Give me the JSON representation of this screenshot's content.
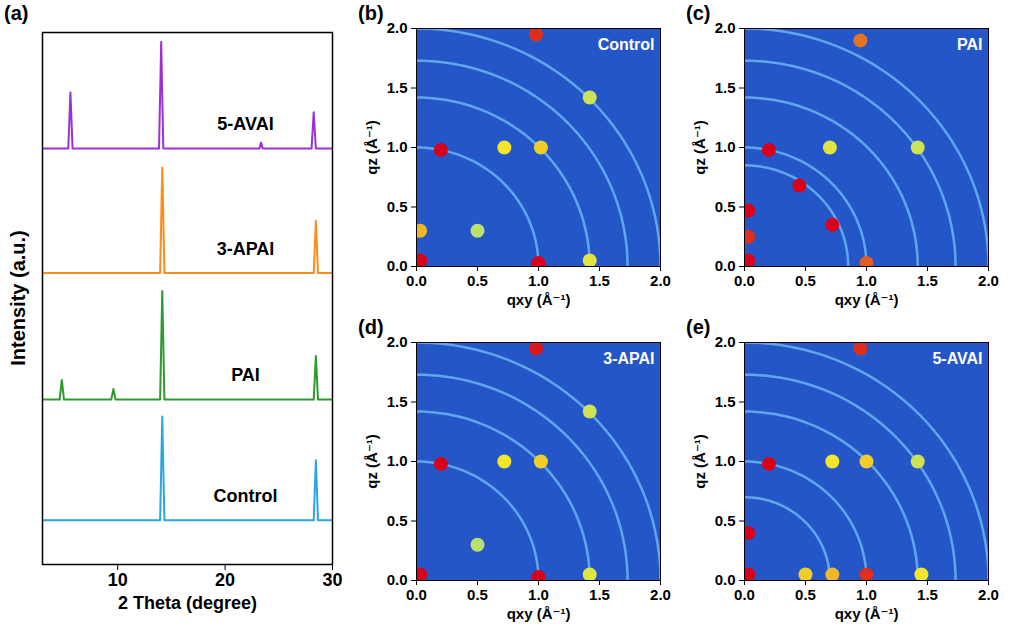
{
  "chart_data": [
    {
      "panel": "(a)",
      "type": "line",
      "x_label": "2 Theta (degree)",
      "y_label": "Intensity (a.u.)",
      "xlim": [
        3,
        30
      ],
      "xticks": [
        10,
        20,
        30
      ],
      "ylim": [
        0,
        100
      ],
      "yticks": [],
      "tick_labels": "x",
      "series": [
        {
          "name": "Control",
          "color": "#2aa6e0",
          "x": [
            3,
            13.95,
            14.15,
            14.35,
            28.25,
            28.45,
            28.65,
            30
          ],
          "values": [
            8.3,
            8.3,
            27.8,
            8.3,
            8.3,
            19.6,
            8.3,
            8.3
          ]
        },
        {
          "name": "PAI",
          "color": "#2e9a2e",
          "x": [
            3,
            4.6,
            4.8,
            5.0,
            9.4,
            9.6,
            9.8,
            13.95,
            14.15,
            14.35,
            28.25,
            28.45,
            28.65,
            30
          ],
          "values": [
            31,
            31,
            34.7,
            31,
            31,
            33,
            31,
            31,
            51.4,
            31,
            31,
            39.2,
            31,
            31
          ]
        },
        {
          "name": "3-APAI",
          "color": "#ff8c1a",
          "x": [
            3,
            13.95,
            14.15,
            14.35,
            28.25,
            28.45,
            28.65,
            30
          ],
          "values": [
            54.8,
            54.8,
            74.6,
            54.8,
            54.8,
            64.6,
            54.8,
            54.8
          ]
        },
        {
          "name": "5-AVAI",
          "color": "#9b30d9",
          "x": [
            3,
            5.4,
            5.6,
            5.8,
            13.85,
            14.05,
            14.25,
            23.2,
            23.35,
            23.5,
            28.05,
            28.25,
            28.45,
            30
          ],
          "values": [
            78.2,
            78.2,
            88.7,
            78.2,
            78.2,
            98.2,
            78.2,
            78.2,
            79.3,
            78.2,
            78.2,
            85,
            78.2,
            78.2
          ]
        }
      ]
    },
    {
      "panel": "(b)",
      "type": "scatter",
      "title": "Control",
      "x_label": "qxy (Å⁻¹)",
      "y_label": "qz (Å⁻¹)",
      "xlim": [
        0,
        2
      ],
      "ylim": [
        0,
        2
      ],
      "xticks": [
        {
          "value": 0,
          "label": "0.0"
        },
        {
          "value": 0.5,
          "label": "0.5"
        },
        {
          "value": 1,
          "label": "1.0"
        },
        {
          "value": 1.5,
          "label": "1.5"
        },
        {
          "value": 2,
          "label": "2.0"
        }
      ],
      "yticks": [
        {
          "value": 0,
          "label": "0.0"
        },
        {
          "value": 0.5,
          "label": "0.5"
        },
        {
          "value": 1,
          "label": "1.0"
        },
        {
          "value": 1.5,
          "label": "1.5"
        },
        {
          "value": 2,
          "label": "2.0"
        }
      ],
      "intensity_range": [
        0,
        1
      ],
      "rings": [
        1.0,
        1.42,
        1.73,
        2.0
      ],
      "spots": {
        "x": [
          0.03,
          0.03,
          0.2,
          1.0,
          0.98,
          0.72,
          1.02,
          1.42,
          1.42,
          0.5
        ],
        "y": [
          0.05,
          0.3,
          0.98,
          0.03,
          1.95,
          1.0,
          1.0,
          0.05,
          1.42,
          0.3
        ],
        "intensity": [
          1,
          0.6,
          1,
          1,
          0.9,
          0.5,
          0.55,
          0.45,
          0.4,
          0.35
        ]
      }
    },
    {
      "panel": "(c)",
      "type": "scatter",
      "title": "PAI",
      "x_label": "qxy (Å⁻¹)",
      "y_label": "qz (Å⁻¹)",
      "xlim": [
        0,
        2
      ],
      "ylim": [
        0,
        2
      ],
      "xticks": [
        {
          "value": 0,
          "label": "0.0"
        },
        {
          "value": 0.5,
          "label": "0.5"
        },
        {
          "value": 1,
          "label": "1.0"
        },
        {
          "value": 1.5,
          "label": "1.5"
        },
        {
          "value": 2,
          "label": "2.0"
        }
      ],
      "yticks": [
        {
          "value": 0,
          "label": "0.0"
        },
        {
          "value": 0.5,
          "label": "0.5"
        },
        {
          "value": 1,
          "label": "1.0"
        },
        {
          "value": 1.5,
          "label": "1.5"
        },
        {
          "value": 2,
          "label": "2.0"
        }
      ],
      "intensity_range": [
        0,
        1
      ],
      "rings": [
        0.85,
        1.0,
        1.42,
        1.73,
        2.0
      ],
      "spots": {
        "x": [
          0.03,
          0.03,
          0.03,
          0.2,
          0.45,
          0.72,
          1.0,
          0.95,
          0.7,
          1.42
        ],
        "y": [
          0.05,
          0.25,
          0.47,
          0.98,
          0.68,
          0.35,
          0.03,
          1.9,
          1.0,
          1.0
        ],
        "intensity": [
          1,
          0.9,
          1,
          1,
          1,
          1,
          0.8,
          0.75,
          0.45,
          0.4
        ]
      }
    },
    {
      "panel": "(d)",
      "type": "scatter",
      "title": "3-APAI",
      "x_label": "qxy (Å⁻¹)",
      "y_label": "qz (Å⁻¹)",
      "xlim": [
        0,
        2
      ],
      "ylim": [
        0,
        2
      ],
      "xticks": [
        {
          "value": 0,
          "label": "0.0"
        },
        {
          "value": 0.5,
          "label": "0.5"
        },
        {
          "value": 1,
          "label": "1.0"
        },
        {
          "value": 1.5,
          "label": "1.5"
        },
        {
          "value": 2,
          "label": "2.0"
        }
      ],
      "yticks": [
        {
          "value": 0,
          "label": "0.0"
        },
        {
          "value": 0.5,
          "label": "0.5"
        },
        {
          "value": 1,
          "label": "1.0"
        },
        {
          "value": 1.5,
          "label": "1.5"
        },
        {
          "value": 2,
          "label": "2.0"
        }
      ],
      "intensity_range": [
        0,
        1
      ],
      "rings": [
        1.0,
        1.42,
        1.73,
        2.0
      ],
      "spots": {
        "x": [
          0.03,
          0.2,
          1.0,
          0.98,
          0.72,
          1.02,
          1.42,
          1.42,
          0.5
        ],
        "y": [
          0.05,
          0.98,
          0.03,
          1.95,
          1.0,
          1.0,
          0.05,
          1.42,
          0.3
        ],
        "intensity": [
          1,
          1,
          1,
          0.95,
          0.5,
          0.55,
          0.45,
          0.4,
          0.35
        ]
      }
    },
    {
      "panel": "(e)",
      "type": "scatter",
      "title": "5-AVAI",
      "x_label": "qxy (Å⁻¹)",
      "y_label": "qz (Å⁻¹)",
      "xlim": [
        0,
        2
      ],
      "ylim": [
        0,
        2
      ],
      "xticks": [
        {
          "value": 0,
          "label": "0.0"
        },
        {
          "value": 0.5,
          "label": "0.5"
        },
        {
          "value": 1,
          "label": "1.0"
        },
        {
          "value": 1.5,
          "label": "1.5"
        },
        {
          "value": 2,
          "label": "2.0"
        }
      ],
      "yticks": [
        {
          "value": 0,
          "label": "0.0"
        },
        {
          "value": 0.5,
          "label": "0.5"
        },
        {
          "value": 1,
          "label": "1.0"
        },
        {
          "value": 1.5,
          "label": "1.5"
        },
        {
          "value": 2,
          "label": "2.0"
        }
      ],
      "intensity_range": [
        0,
        1
      ],
      "rings": [
        0.7,
        1.0,
        1.42,
        1.73,
        2.0
      ],
      "spots": {
        "x": [
          0.03,
          0.03,
          0.2,
          0.5,
          0.72,
          1.0,
          0.95,
          0.72,
          1.0,
          1.42,
          1.45
        ],
        "y": [
          0.05,
          0.4,
          0.98,
          0.05,
          0.05,
          0.05,
          1.95,
          1.0,
          1.0,
          1.0,
          0.05
        ],
        "intensity": [
          1,
          1,
          1,
          0.55,
          0.6,
          0.9,
          0.9,
          0.5,
          0.55,
          0.4,
          0.5
        ]
      }
    }
  ]
}
